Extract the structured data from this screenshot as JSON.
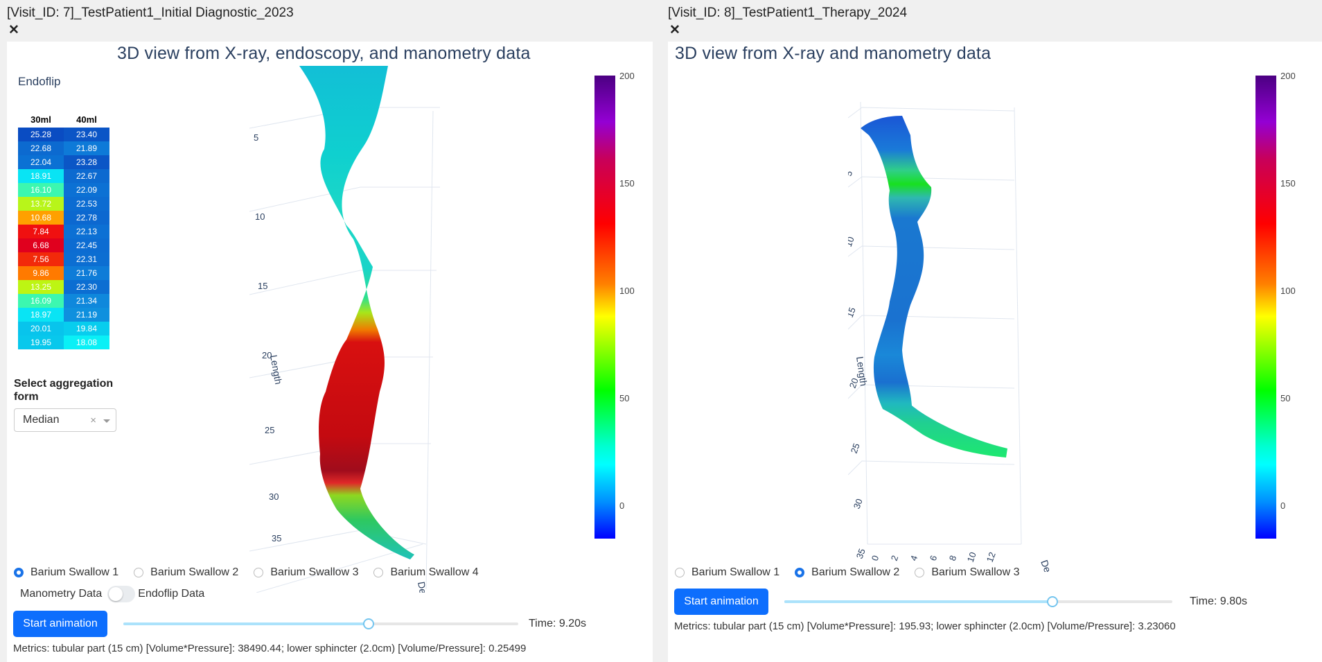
{
  "visits": [
    {
      "title": "[Visit_ID: 7]_TestPatient1_Initial Diagnostic_2023",
      "plot_title": "3D view from X-ray, endoscopy, and manometry data",
      "endoflip": {
        "label": "Endoflip",
        "columns": [
          "30ml",
          "40ml"
        ],
        "rows": [
          {
            "a": "25.28",
            "b": "23.40",
            "ca": "#0a4cc2",
            "cb": "#0b55c6"
          },
          {
            "a": "22.68",
            "b": "21.89",
            "ca": "#0c6ad0",
            "cb": "#0e7ad8"
          },
          {
            "a": "22.04",
            "b": "23.28",
            "ca": "#0b71d4",
            "cb": "#0b56c6"
          },
          {
            "a": "18.91",
            "b": "22.67",
            "ca": "#09e4f4",
            "cb": "#0c6ad0"
          },
          {
            "a": "16.10",
            "b": "22.09",
            "ca": "#3cf7b0",
            "cb": "#0c71d4"
          },
          {
            "a": "13.72",
            "b": "22.53",
            "ca": "#b8f51a",
            "cb": "#0c6cd2"
          },
          {
            "a": "10.68",
            "b": "22.78",
            "ca": "#ffa000",
            "cb": "#0c68d0"
          },
          {
            "a": "7.84",
            "b": "22.13",
            "ca": "#f01010",
            "cb": "#0c70d4"
          },
          {
            "a": "6.68",
            "b": "22.45",
            "ca": "#e0001e",
            "cb": "#0c6cd2"
          },
          {
            "a": "7.56",
            "b": "22.31",
            "ca": "#f22a0a",
            "cb": "#0c6ed2"
          },
          {
            "a": "9.86",
            "b": "21.76",
            "ca": "#ff7a00",
            "cb": "#0e7cd8"
          },
          {
            "a": "13.25",
            "b": "22.30",
            "ca": "#bdf513",
            "cb": "#0c6ed2"
          },
          {
            "a": "16.09",
            "b": "21.34",
            "ca": "#3cf7b0",
            "cb": "#0f88dc"
          },
          {
            "a": "18.97",
            "b": "21.19",
            "ca": "#09e4f4",
            "cb": "#0f90de"
          },
          {
            "a": "20.01",
            "b": "19.84",
            "ca": "#08c4ec",
            "cb": "#08cdee"
          },
          {
            "a": "19.95",
            "b": "18.08",
            "ca": "#08c8ec",
            "cb": "#0af0f6"
          }
        ]
      },
      "aggregation": {
        "label": "Select aggregation form",
        "value": "Median",
        "clear": "×"
      },
      "axis": {
        "length_label": "Length",
        "depth_label": "Depth",
        "ticks": [
          "5",
          "10",
          "15",
          "20",
          "25",
          "30",
          "35"
        ]
      },
      "colorbar": {
        "ticks": [
          "200",
          "150",
          "100",
          "50",
          "0"
        ]
      },
      "swallows": [
        {
          "label": "Barium Swallow 1",
          "selected": true
        },
        {
          "label": "Barium Swallow 2",
          "selected": false
        },
        {
          "label": "Barium Swallow 3",
          "selected": false
        },
        {
          "label": "Barium Swallow 4",
          "selected": false
        }
      ],
      "toggle": {
        "left": "Manometry Data",
        "right": "Endoflip Data"
      },
      "animation_button": "Start animation",
      "slider_fraction": 0.62,
      "time": "Time: 9.20s",
      "metrics": "Metrics: tubular part (15 cm) [Volume*Pressure]: 38490.44; lower sphincter (2.0cm) [Volume/Pressure]: 0.25499"
    },
    {
      "title": "[Visit_ID: 8]_TestPatient1_Therapy_2024",
      "plot_title": "3D view from X-ray and manometry data",
      "axis": {
        "length_label": "Length",
        "depth_label": "Depth",
        "ticks": [
          "5",
          "10",
          "15",
          "20",
          "25",
          "30",
          "35"
        ],
        "xticks": [
          "0",
          "2",
          "4",
          "6",
          "8",
          "10",
          "12"
        ]
      },
      "colorbar": {
        "ticks": [
          "200",
          "150",
          "100",
          "50",
          "0"
        ]
      },
      "swallows": [
        {
          "label": "Barium Swallow 1",
          "selected": false
        },
        {
          "label": "Barium Swallow 2",
          "selected": true
        },
        {
          "label": "Barium Swallow 3",
          "selected": false
        }
      ],
      "animation_button": "Start animation",
      "slider_fraction": 0.69,
      "time": "Time: 9.80s",
      "metrics": "Metrics: tubular part (15 cm) [Volume*Pressure]: 195.93; lower sphincter (2.0cm) [Volume/Pressure]: 3.23060"
    }
  ],
  "colors": {
    "accent": "#0d6efd",
    "plot_text": "#2a3f5f"
  }
}
